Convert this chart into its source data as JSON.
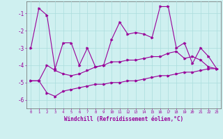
{
  "title": "",
  "xlabel": "Windchill (Refroidissement éolien,°C)",
  "bg_color": "#cff0f0",
  "line_color": "#990099",
  "x_values": [
    0,
    1,
    2,
    3,
    4,
    5,
    6,
    7,
    8,
    9,
    10,
    11,
    12,
    13,
    14,
    15,
    16,
    17,
    18,
    19,
    20,
    21,
    22,
    23
  ],
  "main_y": [
    -3.0,
    -0.7,
    -1.1,
    -4.2,
    -2.7,
    -2.7,
    -4.0,
    -3.0,
    -4.1,
    -4.0,
    -2.5,
    -1.5,
    -2.2,
    -2.1,
    -2.2,
    -2.4,
    -0.6,
    -0.6,
    -3.0,
    -2.7,
    -3.9,
    -3.0,
    -3.5,
    -4.2
  ],
  "upper_y": [
    -4.9,
    -4.9,
    -4.0,
    -4.3,
    -4.5,
    -4.6,
    -4.5,
    -4.3,
    -4.1,
    -4.0,
    -3.8,
    -3.8,
    -3.7,
    -3.7,
    -3.6,
    -3.5,
    -3.5,
    -3.3,
    -3.2,
    -3.6,
    -3.5,
    -3.7,
    -4.1,
    -4.2
  ],
  "lower_y": [
    -4.9,
    -4.9,
    -5.6,
    -5.8,
    -5.5,
    -5.4,
    -5.3,
    -5.2,
    -5.1,
    -5.1,
    -5.0,
    -5.0,
    -4.9,
    -4.9,
    -4.8,
    -4.7,
    -4.6,
    -4.6,
    -4.5,
    -4.4,
    -4.4,
    -4.3,
    -4.2,
    -4.2
  ],
  "xlim": [
    -0.5,
    23.5
  ],
  "ylim": [
    -6.5,
    -0.3
  ],
  "yticks": [
    -6,
    -5,
    -4,
    -3,
    -2,
    -1
  ],
  "grid_color": "#aadddd",
  "grid_linewidth": 0.5
}
